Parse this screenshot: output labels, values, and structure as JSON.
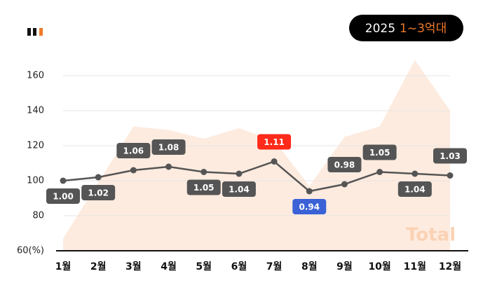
{
  "chart_data": {
    "type": "line",
    "badge": {
      "year": "2025",
      "range": "1~3억대"
    },
    "categories": [
      "1월",
      "2월",
      "3월",
      "4월",
      "5월",
      "6월",
      "7월",
      "8월",
      "9월",
      "10월",
      "11월",
      "12월"
    ],
    "series": [
      {
        "name": "Total",
        "type": "area",
        "color": "#fdebdf",
        "values": [
          67,
          99,
          131,
          129,
          124,
          130,
          123,
          97,
          125,
          131,
          169,
          140
        ]
      },
      {
        "name": null,
        "type": "line",
        "color": "#555555",
        "values": [
          100,
          102,
          106,
          108,
          105,
          104,
          111,
          94,
          98,
          105,
          104,
          103
        ],
        "value_labels": [
          "1.00",
          "1.02",
          "1.06",
          "1.08",
          "1.05",
          "1.04",
          "1.11",
          "0.94",
          "0.98",
          "1.05",
          "1.04",
          "1.03"
        ],
        "label_positions": [
          "below",
          "below",
          "above",
          "above",
          "below",
          "below",
          "above",
          "below",
          "above",
          "above",
          "below",
          "above"
        ],
        "label_color": "#555555",
        "max_color": "#ff2a1a",
        "min_color": "#3a62d6"
      }
    ],
    "ylim": [
      60,
      170
    ],
    "yticks": [
      {
        "value": 60,
        "label": "60(%)"
      },
      80,
      100,
      120,
      140,
      160
    ],
    "grid": true
  }
}
